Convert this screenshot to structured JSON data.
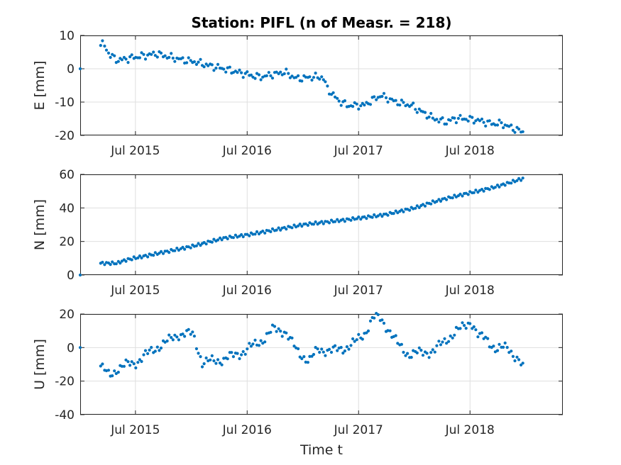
{
  "figure": {
    "title": "Station: PIFL (n of Measr. = 218)",
    "xlabel": "Time t",
    "colors": {
      "marker": "#0072BD",
      "grid": "#dfdfdf",
      "axis": "#262626"
    }
  },
  "chart_data": [
    {
      "type": "scatter",
      "ylabel": "E [mm]",
      "xlim": [
        "2015-01-01",
        "2019-05-01"
      ],
      "ylim": [
        -20,
        10
      ],
      "yticks": [
        -20,
        -10,
        0,
        10
      ],
      "xtick_labels": [
        "Jul 2015",
        "Jul 2016",
        "Jul 2017",
        "Jul 2018"
      ],
      "xtick_dates": [
        "2015-07-01",
        "2016-07-01",
        "2017-07-01",
        "2018-07-01"
      ],
      "grid": true,
      "series": [
        {
          "x": [],
          "y": []
        }
      ]
    },
    {
      "type": "scatter",
      "ylabel": "N [mm]",
      "xlim": [
        "2015-01-01",
        "2019-05-01"
      ],
      "ylim": [
        0,
        60
      ],
      "yticks": [
        0,
        20,
        40,
        60
      ],
      "xtick_labels": [
        "Jul 2015",
        "Jul 2016",
        "Jul 2017",
        "Jul 2018"
      ],
      "xtick_dates": [
        "2015-07-01",
        "2016-07-01",
        "2017-07-01",
        "2018-07-01"
      ],
      "grid": true,
      "series": [
        {
          "x": [],
          "y": []
        }
      ]
    },
    {
      "type": "scatter",
      "ylabel": "U [mm]",
      "xlim": [
        "2015-01-01",
        "2019-05-01"
      ],
      "ylim": [
        -40,
        20
      ],
      "yticks": [
        -40,
        -20,
        0,
        20
      ],
      "xtick_labels": [
        "Jul 2015",
        "Jul 2016",
        "Jul 2017",
        "Jul 2018"
      ],
      "xtick_dates": [
        "2015-07-01",
        "2016-07-01",
        "2017-07-01",
        "2018-07-01"
      ],
      "grid": true,
      "series": [
        {
          "x": [],
          "y": []
        }
      ]
    }
  ]
}
